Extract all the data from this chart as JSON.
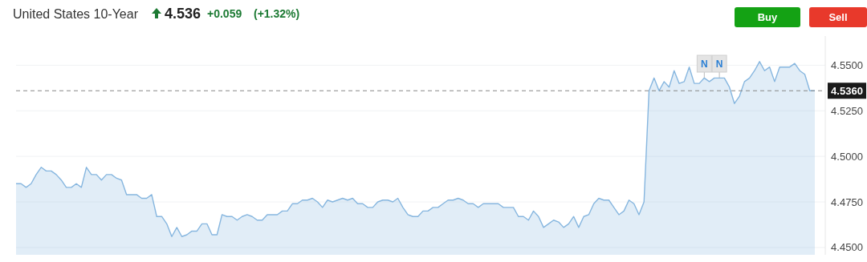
{
  "chart_data": {
    "type": "area",
    "title": "United States 10-Year",
    "subtitle": "4.536",
    "annotations": [
      "+0.059",
      "(+1.32%)",
      "Buy",
      "Sell",
      "N",
      "N"
    ],
    "categories": [
      null,
      null,
      null,
      null,
      null,
      null,
      null,
      null,
      null,
      null,
      null,
      null,
      null,
      null,
      null,
      null,
      null,
      null,
      null,
      null,
      null,
      null,
      null,
      null,
      null,
      null,
      null,
      null,
      null,
      null,
      null,
      null,
      null,
      null,
      null,
      null,
      null,
      null,
      null,
      null,
      null,
      null,
      null,
      null,
      null,
      null,
      null,
      null,
      null,
      null,
      null,
      null,
      null,
      null,
      null,
      null,
      null,
      null,
      null,
      null,
      null,
      null,
      null,
      null,
      null,
      null,
      null,
      null,
      null,
      null,
      null,
      null,
      null,
      null,
      null,
      null,
      null,
      null,
      null,
      null,
      null,
      null,
      null,
      null,
      null,
      null,
      null,
      null,
      null,
      null,
      null,
      null,
      null,
      null,
      null,
      null,
      null,
      null,
      null,
      null,
      null,
      null,
      null,
      null,
      null,
      null,
      null,
      null,
      null,
      null,
      null,
      null,
      null,
      null,
      null,
      null,
      null,
      null,
      null,
      null,
      null,
      null,
      null,
      null,
      null,
      null,
      null,
      null,
      null,
      null,
      null,
      null,
      null,
      null,
      null,
      null,
      null,
      null,
      null,
      null,
      null,
      null,
      null,
      null,
      null,
      null,
      null,
      null,
      null,
      null,
      null,
      null,
      null,
      null,
      null,
      null,
      null,
      null,
      null,
      null
    ],
    "series": [
      {
        "color": "#86b6df",
        "values": [
          4.485,
          4.485,
          4.483,
          4.485,
          4.49,
          4.494,
          4.492,
          4.492,
          4.49,
          4.487,
          4.483,
          4.483,
          4.485,
          4.483,
          4.494,
          4.49,
          4.49,
          4.487,
          4.49,
          4.49,
          4.488,
          4.487,
          4.479,
          4.479,
          4.479,
          4.477,
          4.477,
          4.479,
          4.467,
          4.467,
          4.463,
          4.456,
          4.461,
          4.456,
          4.457,
          4.459,
          4.459,
          4.463,
          4.463,
          4.457,
          4.457,
          4.468,
          4.467,
          4.467,
          4.465,
          4.467,
          4.468,
          4.467,
          4.465,
          4.465,
          4.468,
          4.468,
          4.468,
          4.47,
          4.47,
          4.474,
          4.474,
          4.476,
          4.476,
          4.477,
          4.475,
          4.472,
          4.476,
          4.475,
          4.476,
          4.477,
          4.476,
          4.477,
          4.474,
          4.474,
          4.472,
          4.472,
          4.475,
          4.476,
          4.476,
          4.475,
          4.477,
          4.472,
          4.468,
          4.467,
          4.467,
          4.47,
          4.47,
          4.472,
          4.472,
          4.474,
          4.476,
          4.476,
          4.477,
          4.476,
          4.474,
          4.474,
          4.472,
          4.474,
          4.474,
          4.474,
          4.474,
          4.472,
          4.472,
          4.472,
          4.467,
          4.467,
          4.465,
          4.47,
          4.467,
          4.461,
          4.463,
          4.465,
          4.464,
          4.461,
          4.463,
          4.467,
          4.461,
          4.467,
          4.468,
          4.474,
          4.477,
          4.476,
          4.476,
          4.472,
          4.468,
          4.47,
          4.476,
          4.474,
          4.468,
          4.475,
          4.536,
          4.543,
          4.536,
          4.541,
          4.538,
          4.547,
          4.54,
          4.541,
          4.549,
          4.54,
          4.54,
          4.543,
          4.541,
          4.543,
          4.543,
          4.543,
          4.538,
          4.529,
          4.533,
          4.541,
          4.543,
          4.547,
          4.552,
          4.547,
          4.549,
          4.541,
          4.549,
          4.549,
          4.549,
          4.551,
          4.547,
          4.545,
          4.536,
          4.536
        ]
      }
    ],
    "ylim": [
      4.446,
      4.566
    ],
    "yticks": [
      {
        "value": 4.45,
        "label": "4.4500"
      },
      {
        "value": 4.475,
        "label": "4.4750"
      },
      {
        "value": 4.5,
        "label": "4.5000"
      },
      {
        "value": 4.525,
        "label": "4.5250"
      },
      {
        "value": 4.55,
        "label": "4.5500"
      }
    ],
    "ref_lines": [
      {
        "axis": "y",
        "value": 4.536,
        "label": "4.5360",
        "color": "#888888",
        "line_style": "dashed"
      }
    ],
    "grid": "y"
  }
}
